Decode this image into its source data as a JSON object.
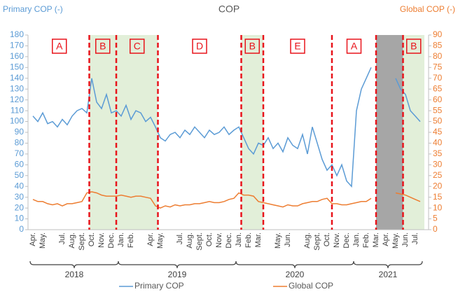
{
  "chart_data": {
    "type": "line",
    "title": "COP",
    "y_label": "Primary COP (-)",
    "y2_label": "Global COP (-)",
    "categories": [
      "Apr.",
      null,
      "May.",
      null,
      null,
      null,
      "Jul.",
      null,
      "Aug.",
      null,
      "Sept.",
      null,
      "Oct.",
      null,
      "Nov.",
      null,
      "Dec.",
      null,
      "Jan.",
      null,
      "Feb.",
      null,
      null,
      null,
      "Apr.",
      null,
      "May.",
      null,
      null,
      null,
      "Jul.",
      null,
      "Aug.",
      null,
      "Sept.",
      null,
      "Oct.",
      null,
      "Nov.",
      null,
      "Dec.",
      null,
      "Jan.",
      null,
      "Feb.",
      null,
      "Mar.",
      null,
      null,
      null,
      "May.",
      null,
      "Jun.",
      null,
      null,
      null,
      "Aug.",
      null,
      "Sept.",
      null,
      "Oct.",
      null,
      "Nov.",
      null,
      "Dec.",
      null,
      "Jan.",
      null,
      "Feb.",
      null,
      "Mar.",
      null,
      "Apr.",
      null,
      "May.",
      null,
      "Jun.",
      null,
      "Jul.",
      null
    ],
    "x_groups": [
      "2018",
      "2019",
      "2020",
      "2021"
    ],
    "annotations": [
      "A",
      "B",
      "C",
      "D",
      "B",
      "E",
      "A",
      "B"
    ],
    "series": [
      {
        "name": "Primary COP",
        "color": "#5b9bd5",
        "axis": "y",
        "values": [
          105,
          100,
          108,
          98,
          100,
          95,
          102,
          97,
          105,
          110,
          112,
          108,
          140,
          118,
          112,
          125,
          108,
          110,
          105,
          115,
          102,
          110,
          108,
          100,
          104,
          95,
          85,
          82,
          88,
          90,
          85,
          92,
          88,
          95,
          90,
          85,
          92,
          88,
          90,
          95,
          88,
          92,
          95,
          85,
          75,
          70,
          80,
          78,
          85,
          75,
          80,
          72,
          85,
          78,
          75,
          88,
          70,
          95,
          80,
          65,
          55,
          60,
          50,
          60,
          45,
          40,
          110,
          130,
          140,
          150,
          null,
          null,
          null,
          null,
          140,
          130,
          125,
          110,
          105,
          100
        ]
      },
      {
        "name": "Global COP",
        "color": "#ed7d31",
        "axis": "y2",
        "values": [
          14,
          13,
          13,
          12,
          11.5,
          12,
          11,
          12,
          12,
          12.5,
          13,
          17,
          17.5,
          17,
          16,
          15.5,
          15.5,
          15.5,
          16,
          15.5,
          15,
          15.5,
          15.5,
          15,
          14.5,
          11,
          10,
          11,
          10.5,
          11.5,
          11,
          11.5,
          11.5,
          12,
          12,
          12.5,
          13,
          12.5,
          12.5,
          13,
          14,
          14.5,
          17,
          16,
          16,
          15.5,
          13,
          12.5,
          12,
          11.5,
          11,
          10.5,
          11.5,
          11,
          11,
          12,
          12.5,
          13,
          13,
          14,
          14.5,
          12,
          12,
          11.5,
          11.5,
          12,
          12.5,
          13,
          13,
          14.5,
          null,
          null,
          null,
          null,
          17,
          16.5,
          16,
          15,
          14,
          13
        ]
      }
    ],
    "ylim": [
      0,
      180
    ],
    "yticks": [
      0,
      10,
      20,
      30,
      40,
      50,
      60,
      70,
      80,
      90,
      100,
      110,
      120,
      130,
      140,
      150,
      160,
      170,
      180
    ],
    "y2lim": [
      0,
      90
    ],
    "y2ticks": [
      0,
      5,
      10,
      15,
      20,
      25,
      30,
      35,
      40,
      45,
      50,
      55,
      60,
      65,
      70,
      75,
      80,
      85,
      90
    ],
    "legend": "bottom"
  }
}
